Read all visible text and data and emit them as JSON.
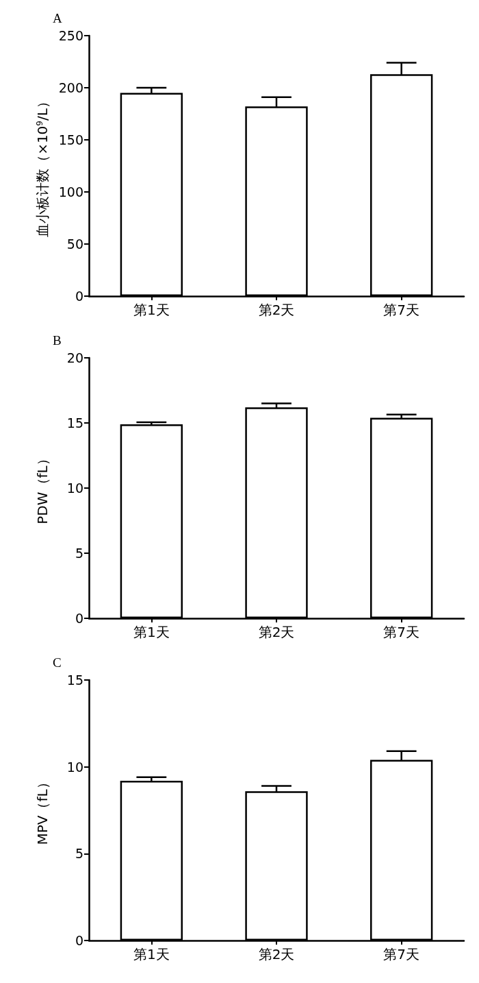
{
  "chart_data": [
    {
      "type": "bar",
      "title": "A",
      "ylabel": "血小板计数（×10$^{9}$/L）",
      "categories": [
        "第1天",
        "第2天",
        "第7天"
      ],
      "series": [
        {
          "color": "#ffffff",
          "values": [
            195,
            182,
            213
          ],
          "errors": [
            5,
            9,
            11
          ]
        }
      ],
      "ylim": [
        0,
        250
      ],
      "yticks": [
        0,
        50,
        100,
        150,
        200,
        250
      ],
      "grid": false
    },
    {
      "type": "bar",
      "title": "B",
      "ylabel": "PDW（fL）",
      "categories": [
        "第1天",
        "第2天",
        "第7天"
      ],
      "series": [
        {
          "color": "#ffffff",
          "values": [
            14.9,
            16.2,
            15.4
          ],
          "errors": [
            0.15,
            0.3,
            0.25
          ]
        }
      ],
      "ylim": [
        0,
        20
      ],
      "yticks": [
        0,
        5,
        10,
        15,
        20
      ],
      "grid": false
    },
    {
      "type": "bar",
      "title": "C",
      "ylabel": "MPV（fL）",
      "categories": [
        "第1天",
        "第2天",
        "第7天"
      ],
      "series": [
        {
          "color": "#ffffff",
          "values": [
            9.2,
            8.6,
            10.4
          ],
          "errors": [
            0.2,
            0.3,
            0.5
          ]
        }
      ],
      "ylim": [
        0,
        15
      ],
      "yticks": [
        0,
        5,
        10,
        15
      ],
      "grid": false
    }
  ]
}
